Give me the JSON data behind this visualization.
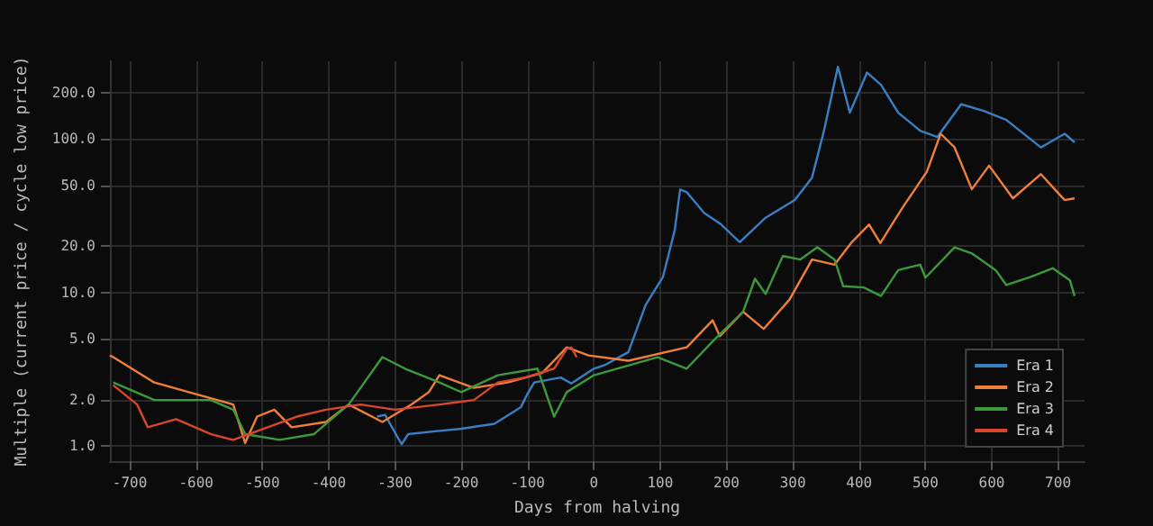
{
  "chart_data": {
    "type": "line",
    "xlabel": "Days from halving",
    "ylabel": "Multiple (current price / cycle low price)",
    "log": "y",
    "grid": true,
    "legend": "bottom right",
    "marker": "none",
    "line_style": "solid",
    "xlim": [
      -730,
      740
    ],
    "xticks": [
      -700,
      -600,
      -500,
      -400,
      -300,
      -200,
      -100,
      0,
      100,
      200,
      300,
      400,
      500,
      600,
      700
    ],
    "ylim": [
      0.8,
      320
    ],
    "yticks": [
      {
        "value": 1,
        "label": "1.0"
      },
      {
        "value": 2,
        "label": "2.0"
      },
      {
        "value": 5,
        "label": "5.0"
      },
      {
        "value": 10,
        "label": "10.0"
      },
      {
        "value": 20,
        "label": "20.0"
      },
      {
        "value": 50,
        "label": "50.0"
      },
      {
        "value": 100,
        "label": "100.0"
      },
      {
        "value": 200,
        "label": "200.0"
      }
    ],
    "series": [
      {
        "name": "Era 1",
        "color": "#3a7fc4",
        "x": [
          -327,
          -315,
          -290,
          -280,
          -240,
          -200,
          -150,
          -110,
          -100,
          -90,
          -50,
          -34,
          0,
          18,
          52,
          78,
          104,
          122,
          130,
          140,
          166,
          192,
          220,
          259,
          303,
          329,
          347,
          368,
          386,
          412,
          433,
          459,
          492,
          518,
          554,
          588,
          622,
          674,
          710,
          725
        ],
        "values": [
          1.56,
          1.6,
          1.03,
          1.2,
          1.25,
          1.3,
          1.4,
          1.8,
          2.2,
          2.6,
          2.8,
          2.56,
          3.2,
          3.4,
          4.1,
          8.3,
          12.6,
          25.6,
          46.8,
          45,
          33,
          27.7,
          21.3,
          30.7,
          40,
          56,
          113,
          294,
          148,
          270,
          225,
          148,
          113,
          103,
          168,
          152,
          133,
          88,
          108,
          95
        ]
      },
      {
        "name": "Era 2",
        "color": "#f07f3a",
        "x": [
          -730,
          -725,
          -663,
          -611,
          -544,
          -526,
          -508,
          -482,
          -456,
          -404,
          -370,
          -319,
          -275,
          -249,
          -233,
          -181,
          -130,
          -78,
          -41,
          -8,
          52,
          140,
          179,
          190,
          225,
          256,
          295,
          329,
          363,
          389,
          415,
          432,
          466,
          502,
          523,
          544,
          570,
          596,
          632,
          674,
          710,
          725
        ],
        "values": [
          3.9,
          3.8,
          2.6,
          2.25,
          1.87,
          1.05,
          1.56,
          1.73,
          1.33,
          1.44,
          1.87,
          1.44,
          1.87,
          2.25,
          2.9,
          2.4,
          2.6,
          3.0,
          4.4,
          3.9,
          3.6,
          4.4,
          6.6,
          5.2,
          7.5,
          5.8,
          9.0,
          16.4,
          15.2,
          21.3,
          27.7,
          21,
          36,
          61,
          108,
          88,
          47,
          67,
          41,
          59,
          40,
          41
        ]
      },
      {
        "name": "Era 3",
        "color": "#3c9a3c",
        "x": [
          -725,
          -663,
          -578,
          -544,
          -526,
          -474,
          -422,
          -370,
          -352,
          -319,
          -285,
          -233,
          -200,
          -145,
          -85,
          -60,
          -41,
          0,
          96,
          140,
          181,
          225,
          243,
          259,
          285,
          311,
          337,
          363,
          376,
          407,
          433,
          459,
          492,
          500,
          544,
          570,
          606,
          622,
          658,
          692,
          718,
          725
        ],
        "values": [
          2.6,
          2.0,
          2.0,
          1.73,
          1.2,
          1.1,
          1.2,
          1.87,
          2.4,
          3.8,
          3.2,
          2.6,
          2.25,
          2.9,
          3.2,
          1.56,
          2.25,
          2.9,
          3.8,
          3.2,
          4.9,
          7.5,
          12.3,
          9.8,
          17.3,
          16.4,
          19.7,
          16.4,
          11,
          10.8,
          9.5,
          14,
          15.2,
          12.5,
          19.7,
          18,
          14,
          11.2,
          12.6,
          14.4,
          12,
          9.5
        ]
      },
      {
        "name": "Era 4",
        "color": "#d9472b",
        "x": [
          -725,
          -689,
          -673,
          -630,
          -578,
          -544,
          -492,
          -448,
          -404,
          -352,
          -300,
          -233,
          -181,
          -145,
          -104,
          -60,
          -41,
          -34,
          -26
        ],
        "values": [
          2.5,
          1.87,
          1.33,
          1.5,
          1.2,
          1.1,
          1.33,
          1.56,
          1.73,
          1.87,
          1.73,
          1.87,
          2.0,
          2.6,
          2.8,
          3.2,
          4.3,
          4.4,
          3.8
        ]
      }
    ]
  }
}
